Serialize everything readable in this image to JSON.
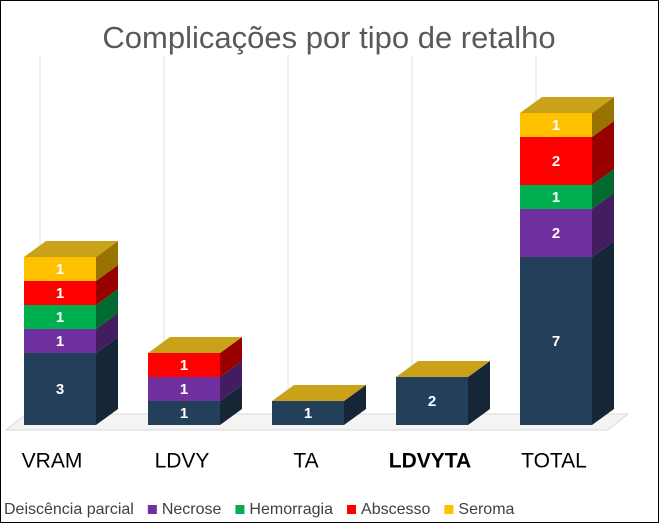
{
  "chart_data": {
    "type": "bar3d_stacked",
    "title": "Complicações por tipo de retalho",
    "categories": [
      "VRAM",
      "LDVY",
      "TA",
      "LDVYTA",
      "TOTAL"
    ],
    "series": [
      {
        "name": "Deiscência parcial",
        "color": "#243f5a",
        "values": [
          3,
          1,
          1,
          2,
          7
        ]
      },
      {
        "name": "Necrose",
        "color": "#7030a0",
        "values": [
          1,
          1,
          0,
          0,
          2
        ]
      },
      {
        "name": "Hemorragia",
        "color": "#00b050",
        "values": [
          1,
          0,
          0,
          0,
          1
        ]
      },
      {
        "name": "Abscesso",
        "color": "#ff0000",
        "values": [
          1,
          1,
          0,
          0,
          2
        ]
      },
      {
        "name": "Seroma",
        "color": "#ffc000",
        "values": [
          1,
          0,
          0,
          0,
          1
        ]
      }
    ],
    "legend": "bottom"
  }
}
